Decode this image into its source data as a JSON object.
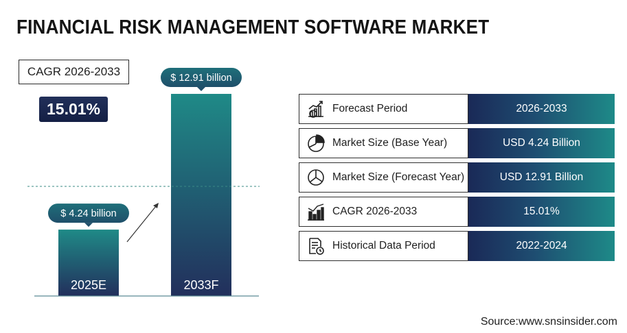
{
  "title": "FINANCIAL RISK MANAGEMENT SOFTWARE MARKET",
  "cagr_box": {
    "label": "CAGR 2026-2033",
    "value": "15.01%"
  },
  "chart_data": {
    "type": "bar",
    "categories": [
      "2025E",
      "2033F"
    ],
    "values": [
      4.24,
      12.91
    ],
    "data_labels": [
      "$ 4.24 billion",
      "$ 12.91 billion"
    ],
    "unit": "USD billion",
    "title": "",
    "xlabel": "",
    "ylabel": "",
    "ylim": [
      0,
      12.91
    ],
    "grid": false,
    "legend": "none"
  },
  "table": {
    "rows": [
      {
        "icon": "growth-chart-icon",
        "label": "Forecast Period",
        "value": "2026-2033"
      },
      {
        "icon": "pie-chart-icon",
        "label": "Market Size (Base Year)",
        "value": "USD 4.24 Billion"
      },
      {
        "icon": "pie-chart-icon",
        "label": "Market Size (Forecast Year)",
        "value": "USD 12.91 Billion"
      },
      {
        "icon": "bar-chart-icon",
        "label": "CAGR 2026-2033",
        "value": "15.01%"
      },
      {
        "icon": "document-clock-icon",
        "label": "Historical Data Period",
        "value": "2022-2024"
      }
    ]
  },
  "colors": {
    "navy": "#1b2a57",
    "teal": "#1f8b87",
    "bar_top": "#1f8a87",
    "bar_bottom": "#222f5c"
  },
  "source": "Source:www.snsinsider.com"
}
